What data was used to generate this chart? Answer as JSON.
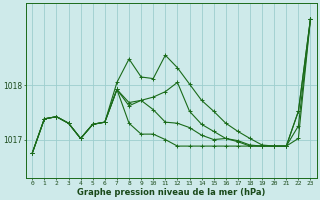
{
  "xlabel": "Graphe pression niveau de la mer (hPa)",
  "bg_color": "#ceeaea",
  "grid_color": "#9dcece",
  "line_color": "#1a6b1a",
  "xlim": [
    -0.5,
    23.5
  ],
  "ylim": [
    1016.3,
    1019.5
  ],
  "yticks": [
    1017,
    1018
  ],
  "xticks": [
    0,
    1,
    2,
    3,
    4,
    5,
    6,
    7,
    8,
    9,
    10,
    11,
    12,
    13,
    14,
    15,
    16,
    17,
    18,
    19,
    20,
    21,
    22,
    23
  ],
  "series1": [
    1016.75,
    1017.38,
    1017.42,
    1017.3,
    1017.02,
    1017.28,
    1017.32,
    1018.05,
    1018.48,
    1018.15,
    1018.12,
    1018.55,
    1018.32,
    1018.02,
    1017.72,
    1017.52,
    1017.3,
    1017.15,
    1017.02,
    1016.9,
    1016.88,
    1016.88,
    1017.52,
    1019.22
  ],
  "series2": [
    1016.75,
    1017.38,
    1017.42,
    1017.3,
    1017.02,
    1017.28,
    1017.32,
    1017.92,
    1017.68,
    1017.72,
    1017.78,
    1017.88,
    1018.05,
    1017.52,
    1017.28,
    1017.15,
    1017.02,
    1016.96,
    1016.88,
    1016.88,
    1016.88,
    1016.88,
    1017.52,
    1019.22
  ],
  "series3": [
    1016.75,
    1017.38,
    1017.42,
    1017.3,
    1017.02,
    1017.28,
    1017.32,
    1017.92,
    1017.62,
    1017.72,
    1017.55,
    1017.32,
    1017.3,
    1017.22,
    1017.08,
    1017.0,
    1017.02,
    1016.98,
    1016.9,
    1016.88,
    1016.88,
    1016.88,
    1017.25,
    1019.22
  ],
  "series4": [
    1016.75,
    1017.38,
    1017.42,
    1017.3,
    1017.02,
    1017.28,
    1017.32,
    1017.92,
    1017.3,
    1017.1,
    1017.1,
    1017.0,
    1016.88,
    1016.88,
    1016.88,
    1016.88,
    1016.88,
    1016.88,
    1016.88,
    1016.88,
    1016.88,
    1016.88,
    1017.02,
    1019.22
  ]
}
